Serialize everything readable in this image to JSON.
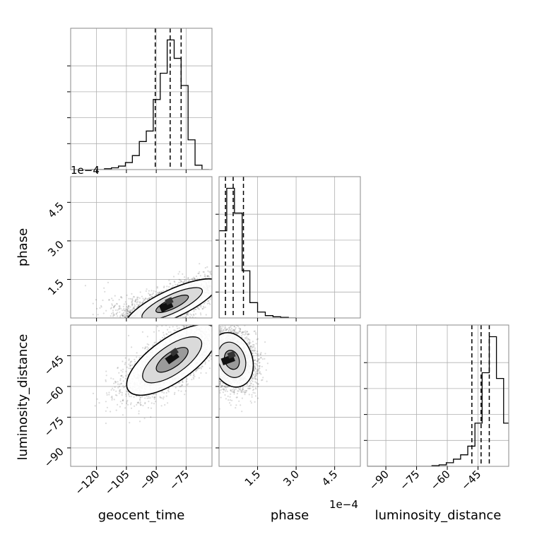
{
  "chart_data": {
    "type": "corner",
    "parameters": [
      "geocent_time",
      "phase",
      "luminosity_distance"
    ],
    "offset_labels": {
      "geocent_time_hist": "1e−4",
      "phase_axis": "1e−4"
    },
    "axes": {
      "geocent_time": {
        "range": [
          -133,
          -62
        ],
        "ticks": [
          -120,
          -105,
          -90,
          -75
        ],
        "tick_labels": [
          "−120",
          "−105",
          "−90",
          "−75"
        ]
      },
      "phase": {
        "range": [
          0,
          5.5
        ],
        "ticks": [
          1.5,
          3.0,
          4.5
        ],
        "tick_labels": [
          "1.5",
          "3.0",
          "4.5"
        ]
      },
      "luminosity_distance": {
        "range": [
          -99,
          -30
        ],
        "ticks": [
          -90,
          -75,
          -60,
          -45
        ],
        "tick_labels": [
          "−90",
          "−75",
          "−60",
          "−45"
        ]
      }
    },
    "histograms": [
      {
        "parameter": "geocent_time",
        "bin_edges": [
          -123,
          -119.5,
          -116,
          -112.5,
          -109,
          -105.5,
          -102,
          -98.5,
          -95,
          -91.5,
          -88,
          -84.5,
          -81,
          -77.5,
          -74,
          -70.5,
          -67,
          -63.5
        ],
        "counts": [
          0,
          0,
          1,
          2,
          4,
          8,
          16,
          32,
          44,
          80,
          110,
          148,
          127,
          96,
          34,
          5,
          0
        ],
        "quantiles": [
          -90.5,
          -83.0,
          -77.5
        ]
      },
      {
        "parameter": "phase",
        "bin_edges": [
          0,
          0.3,
          0.6,
          0.9,
          1.2,
          1.5,
          1.8,
          2.1,
          2.4,
          2.7,
          3.0
        ],
        "counts": [
          148,
          220,
          178,
          80,
          26,
          10,
          4,
          2,
          1,
          0
        ],
        "quantiles": [
          0.25,
          0.55,
          0.95
        ]
      },
      {
        "parameter": "luminosity_distance",
        "bin_edges": [
          -99,
          -95.5,
          -92,
          -88.5,
          -85,
          -81.5,
          -78,
          -74.5,
          -71,
          -67.5,
          -64,
          -60.5,
          -57,
          -53.5,
          -50,
          -46.5,
          -43,
          -39.5,
          -36,
          -32.5,
          -29
        ],
        "counts": [
          0,
          0,
          0,
          0,
          0,
          0,
          0,
          0,
          0,
          1,
          2,
          5,
          10,
          16,
          28,
          60,
          130,
          180,
          122,
          60
        ],
        "quantiles": [
          -48.0,
          -43.5,
          -39.5
        ]
      }
    ],
    "pairs": [
      {
        "x": "geocent_time",
        "y": "phase",
        "center": [
          -82,
          0.55
        ],
        "density_peak": [
          -85,
          0.45
        ]
      },
      {
        "x": "geocent_time",
        "y": "luminosity_distance",
        "center": [
          -82,
          -47
        ],
        "density_peak": [
          -82,
          -46
        ]
      },
      {
        "x": "phase",
        "y": "luminosity_distance",
        "center": [
          0.5,
          -47
        ],
        "density_peak": [
          0.35,
          -47
        ]
      }
    ],
    "grid": true
  }
}
